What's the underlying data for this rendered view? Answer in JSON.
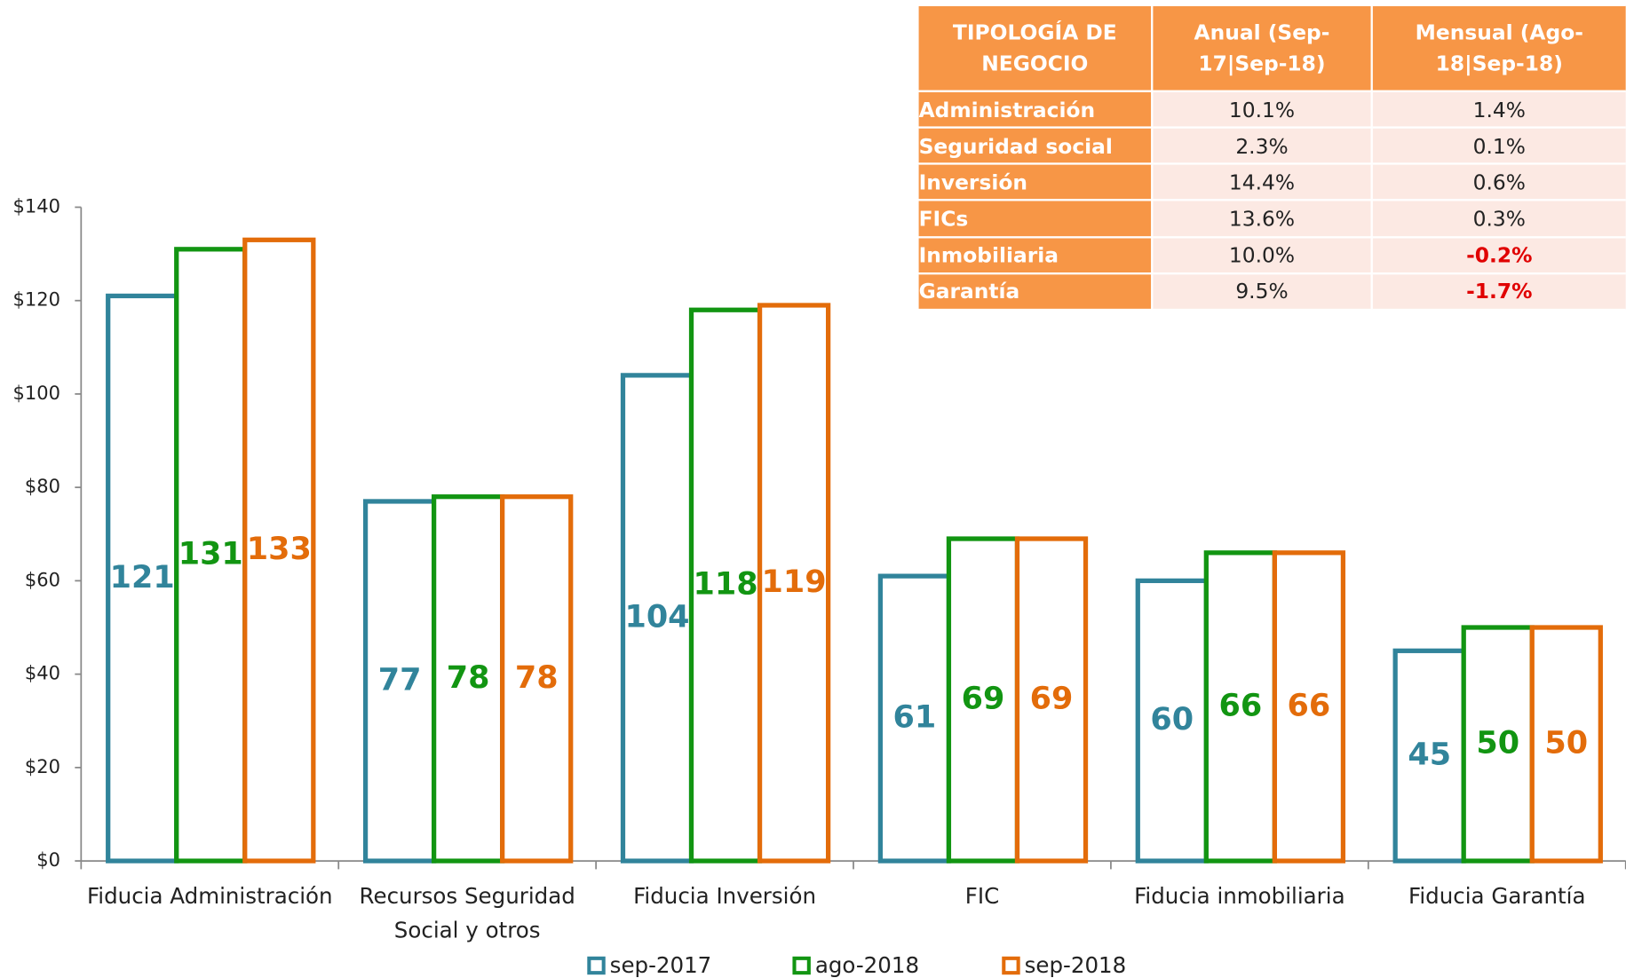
{
  "chart_data": {
    "type": "bar",
    "categories": [
      "Fiducia Administración",
      "Recursos Seguridad Social y otros",
      "Fiducia Inversión",
      "FIC",
      "Fiducia inmobiliaria",
      "Fiducia Garantía"
    ],
    "series": [
      {
        "name": "sep-2017",
        "color": "#31849b",
        "values": [
          121,
          77,
          104,
          61,
          60,
          45
        ]
      },
      {
        "name": "ago-2018",
        "color": "#129512",
        "values": [
          131,
          78,
          118,
          69,
          66,
          50
        ]
      },
      {
        "name": "sep-2018",
        "color": "#e36c0a",
        "values": [
          133,
          78,
          119,
          69,
          66,
          50
        ]
      }
    ],
    "ylim": [
      0,
      140
    ],
    "yticks": [
      {
        "value": 0,
        "label": "$0"
      },
      {
        "value": 20,
        "label": "$20"
      },
      {
        "value": 40,
        "label": "$40"
      },
      {
        "value": 60,
        "label": "$60"
      },
      {
        "value": 80,
        "label": "$80"
      },
      {
        "value": 100,
        "label": "$100"
      },
      {
        "value": 120,
        "label": "$120"
      },
      {
        "value": 140,
        "label": "$140"
      }
    ],
    "legend": "bottom"
  },
  "table": {
    "headers": [
      "TIPOLOGÍA DE NEGOCIO",
      "Anual (Sep-17|Sep-18)",
      "Mensual (Ago-18|Sep-18)"
    ],
    "rows": [
      [
        "Administración",
        "10.1%",
        "1.4%"
      ],
      [
        "Seguridad social",
        "2.3%",
        "0.1%"
      ],
      [
        "Inversión",
        "14.4%",
        "0.6%"
      ],
      [
        "FICs",
        "13.6%",
        "0.3%"
      ],
      [
        "Inmobiliaria",
        "10.0%",
        "-0.2%"
      ],
      [
        "Garantía",
        "9.5%",
        "-1.7%"
      ]
    ]
  }
}
